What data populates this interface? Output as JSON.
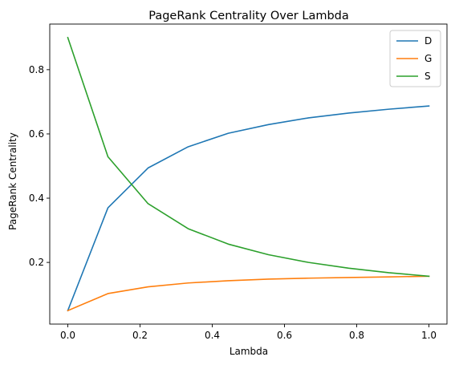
{
  "chart_data": {
    "type": "line",
    "title": "PageRank Centrality Over Lambda",
    "xlabel": "Lambda",
    "ylabel": "PageRank Centrality",
    "x": [
      0.0,
      0.1111,
      0.2222,
      0.3333,
      0.4444,
      0.5556,
      0.6667,
      0.7778,
      0.8889,
      1.0
    ],
    "xlim": [
      -0.05,
      1.05
    ],
    "ylim": [
      0.008,
      0.942
    ],
    "xticks": [
      0.0,
      0.2,
      0.4,
      0.6,
      0.8,
      1.0
    ],
    "xtick_labels": [
      "0.0",
      "0.2",
      "0.4",
      "0.6",
      "0.8",
      "1.0"
    ],
    "yticks": [
      0.2,
      0.4,
      0.6,
      0.8
    ],
    "ytick_labels": [
      "0.2",
      "0.4",
      "0.6",
      "0.8"
    ],
    "grid": false,
    "legend_position": "top-right",
    "series": [
      {
        "name": "D",
        "color": "#1f77b4",
        "values": [
          0.05,
          0.37,
          0.494,
          0.56,
          0.602,
          0.629,
          0.65,
          0.665,
          0.677,
          0.687
        ]
      },
      {
        "name": "G",
        "color": "#ff7f0e",
        "values": [
          0.05,
          0.103,
          0.124,
          0.136,
          0.143,
          0.148,
          0.151,
          0.153,
          0.155,
          0.157
        ]
      },
      {
        "name": "S",
        "color": "#2ca02c",
        "values": [
          0.9,
          0.529,
          0.383,
          0.305,
          0.257,
          0.224,
          0.2,
          0.182,
          0.168,
          0.157
        ]
      }
    ]
  }
}
